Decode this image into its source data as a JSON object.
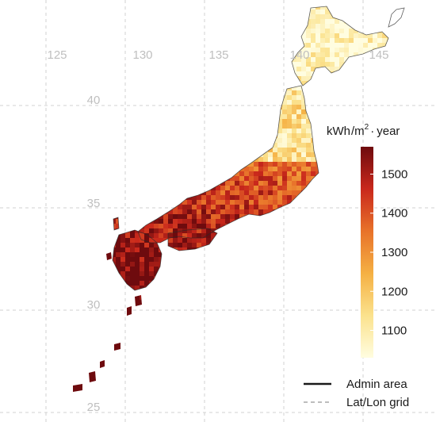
{
  "map": {
    "grid_lon": [
      {
        "value": 125,
        "label": "125"
      },
      {
        "value": 130,
        "label": "130"
      },
      {
        "value": 135,
        "label": "135"
      },
      {
        "value": 140,
        "label": "140"
      },
      {
        "value": 145,
        "label": "145"
      }
    ],
    "grid_lat": [
      {
        "value": 40,
        "label": "40"
      },
      {
        "value": 35,
        "label": "35"
      },
      {
        "value": 30,
        "label": "30"
      },
      {
        "value": 25,
        "label": "25"
      }
    ],
    "colorbar": {
      "unit_prefix": "kWh",
      "unit_mid": "m",
      "unit_sup": "2",
      "unit_suffix": "year",
      "min": 1030,
      "max": 1570,
      "ticks": [
        {
          "value": 1500,
          "label": "1500"
        },
        {
          "value": 1400,
          "label": "1400"
        },
        {
          "value": 1300,
          "label": "1300"
        },
        {
          "value": 1200,
          "label": "1200"
        },
        {
          "value": 1100,
          "label": "1100"
        }
      ],
      "colors": [
        "#fffde0",
        "#fbe28d",
        "#f5b043",
        "#e8722a",
        "#c9281c",
        "#6e0b0e"
      ]
    },
    "legend": [
      {
        "label": "Admin area",
        "style": "solid",
        "color": "#1a1a1a"
      },
      {
        "label": "Lat/Lon grid",
        "style": "dashed",
        "color": "#bdbdbd"
      }
    ]
  }
}
